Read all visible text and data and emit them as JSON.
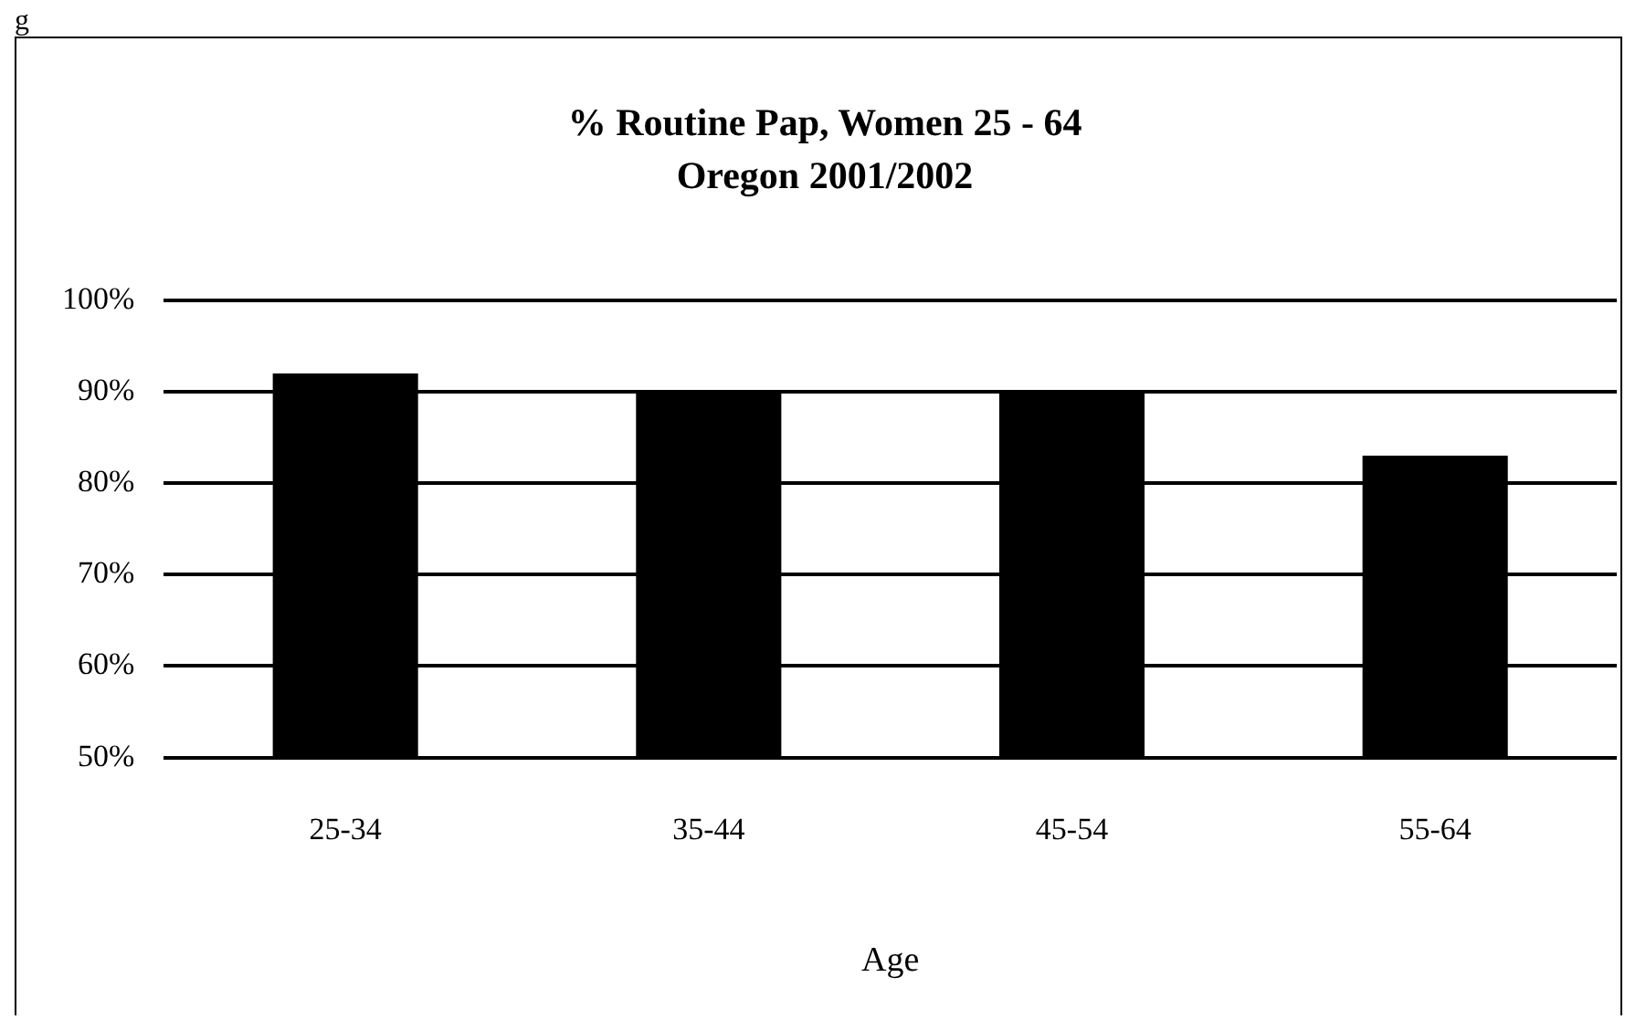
{
  "chart_data": {
    "type": "bar",
    "title": "% Routine Pap, Women 25 - 64",
    "subtitle": "Oregon 2001/2002",
    "xlabel": "Age",
    "categories": [
      "25-34",
      "35-44",
      "45-54",
      "55-64"
    ],
    "values": [
      92,
      90,
      90,
      83
    ],
    "color": "#000000",
    "ylim": [
      50,
      100
    ],
    "yticks": [
      {
        "value": 50,
        "label": "50%"
      },
      {
        "value": 60,
        "label": "60%"
      },
      {
        "value": 70,
        "label": "70%"
      },
      {
        "value": 80,
        "label": "80%"
      },
      {
        "value": 90,
        "label": "90%"
      },
      {
        "value": 100,
        "label": "100%"
      }
    ],
    "grid": "y",
    "legend": false,
    "annotations": [
      "g"
    ]
  }
}
